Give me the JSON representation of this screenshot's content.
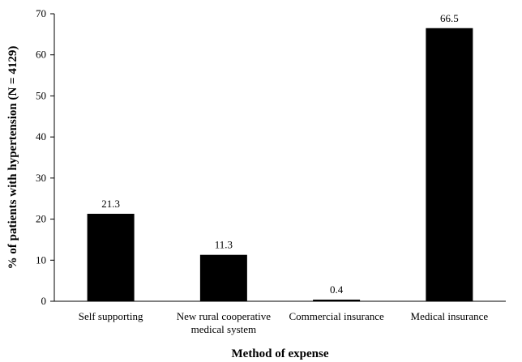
{
  "chart_data": {
    "type": "bar",
    "title": "",
    "xlabel": "Method of expense",
    "ylabel": "% of patients with hypertension (N = 4129)",
    "categories": [
      [
        "Self supporting"
      ],
      [
        "New rural cooperative",
        "medical system"
      ],
      [
        "Commercial insurance"
      ],
      [
        "Medical insurance"
      ]
    ],
    "values": [
      21.3,
      11.3,
      0.4,
      66.5
    ],
    "data_labels": [
      "21.3",
      "11.3",
      "0.4",
      "66.5"
    ],
    "ylim": [
      0,
      70
    ],
    "yticks": [
      0,
      10,
      20,
      30,
      40,
      50,
      60,
      70
    ],
    "grid": false,
    "legend": "none",
    "bar_color": "#000000"
  }
}
